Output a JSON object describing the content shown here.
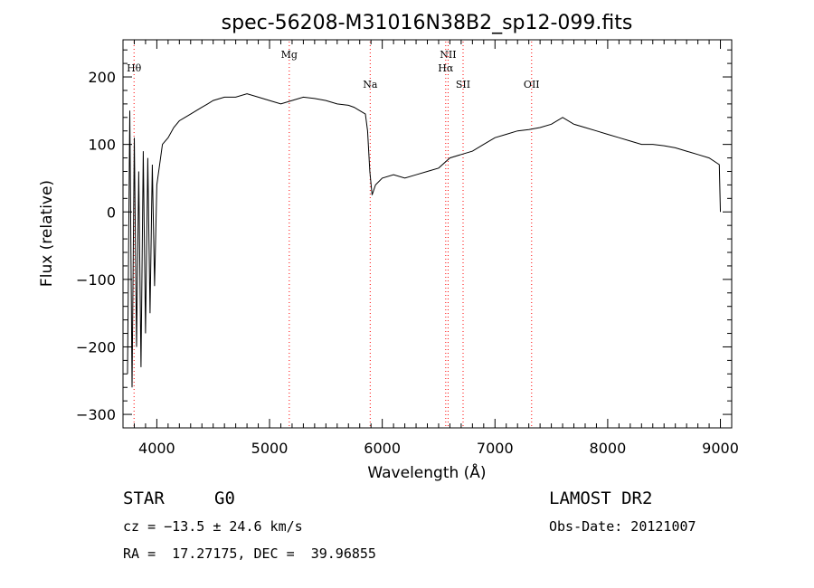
{
  "chart_data": {
    "type": "line",
    "title": "spec-56208-M31016N38B2_sp12-099.fits",
    "xlabel": "Wavelength (Å)",
    "ylabel": "Flux (relative)",
    "xlim": [
      3700,
      9100
    ],
    "ylim": [
      -320,
      255
    ],
    "x_ticks": [
      4000,
      5000,
      6000,
      7000,
      8000,
      9000
    ],
    "y_ticks": [
      -300,
      -200,
      -100,
      0,
      100,
      200
    ],
    "grid": false,
    "line_color": "#000000",
    "marker_color": "#ff0000",
    "lines": [
      {
        "label": "Hθ",
        "x": 3798,
        "label_row": "upper"
      },
      {
        "label": "Mg",
        "x": 5175,
        "label_row": "top"
      },
      {
        "label": "Na",
        "x": 5893,
        "label_row": "lower"
      },
      {
        "label": "NII",
        "x": 6584,
        "label_row": "top"
      },
      {
        "label": "Hα",
        "x": 6563,
        "label_row": "upper"
      },
      {
        "label": "SII",
        "x": 6717,
        "label_row": "lower"
      },
      {
        "label": "OII",
        "x": 7325,
        "label_row": "lower"
      }
    ],
    "series": [
      {
        "x": [
          3740,
          3760,
          3780,
          3800,
          3820,
          3840,
          3860,
          3880,
          3900,
          3920,
          3940,
          3960,
          3980,
          4000,
          4050,
          4100,
          4150,
          4200,
          4250,
          4300,
          4350,
          4400,
          4450,
          4500,
          4600,
          4700,
          4800,
          4900,
          5000,
          5100,
          5200,
          5300,
          5400,
          5500,
          5600,
          5700,
          5750,
          5800,
          5850,
          5870,
          5890,
          5910,
          5940,
          6000,
          6100,
          6200,
          6300,
          6400,
          6500,
          6600,
          6700,
          6800,
          6900,
          7000,
          7100,
          7200,
          7300,
          7400,
          7500,
          7600,
          7700,
          7800,
          7900,
          8000,
          8100,
          8200,
          8300,
          8400,
          8500,
          8600,
          8700,
          8800,
          8900,
          8990,
          9000
        ],
        "values": [
          -240,
          150,
          -260,
          110,
          -200,
          60,
          -230,
          90,
          -180,
          80,
          -150,
          70,
          -110,
          40,
          100,
          110,
          125,
          135,
          140,
          145,
          150,
          155,
          160,
          165,
          170,
          170,
          175,
          170,
          165,
          160,
          165,
          170,
          168,
          165,
          160,
          158,
          155,
          150,
          145,
          120,
          60,
          25,
          40,
          50,
          55,
          50,
          55,
          60,
          65,
          80,
          85,
          90,
          100,
          110,
          115,
          120,
          122,
          125,
          130,
          140,
          130,
          125,
          120,
          115,
          110,
          105,
          100,
          100,
          98,
          95,
          90,
          85,
          80,
          70,
          0
        ]
      }
    ]
  },
  "info": {
    "object_class": "STAR",
    "subclass": "G0",
    "survey": "LAMOST DR2",
    "cz": "cz = −13.5 ± 24.6 km/s",
    "obs_date": "Obs-Date: 20121007",
    "coords": "RA =  17.27175, DEC =  39.96855"
  }
}
